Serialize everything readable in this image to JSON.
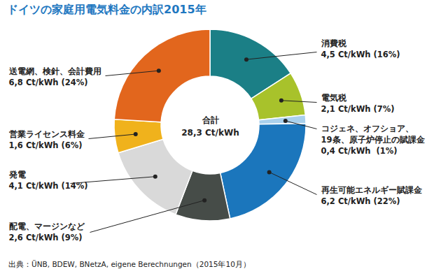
{
  "chart_data": {
    "type": "pie",
    "title": "ドイツの家庭用電気料金の内訳2015年",
    "categories": [
      "消費税",
      "電気税",
      "コジェネ、オフショア、\n19条、原子炉停止の賦課金",
      "再生可能エネルギー賦課金",
      "配電、マージンなど",
      "発電",
      "営業ライセンス料金",
      "送電網、検針、会計費用"
    ],
    "values": [
      4.5,
      2.1,
      0.4,
      6.2,
      2.6,
      4.1,
      1.6,
      6.8
    ],
    "value_labels": [
      "4,5 Ct/kWh (16%)",
      "2,1 Ct/kWh (7%)",
      "0,4 Ct/kWh  (1%)",
      "6,2 Ct/kWh (22%)",
      "2,6 Ct/kWh (9%)",
      "4,1 Ct/kWh (14%)",
      "1,6 Ct/kWh (6%)",
      "6,8 Ct/kWh (24%)"
    ],
    "colors": [
      "#1b7f86",
      "#a8c22b",
      "#a9d0ec",
      "#1b76bc",
      "#464c48",
      "#d9d9d9",
      "#f0b21c",
      "#e2661d"
    ],
    "data_labels": true,
    "total_label": "合計",
    "total_value": 28.3,
    "total_value_label": "28,3 Ct/kWh",
    "source": "出典：ÜNB, BDEW, BNetzA, eigene Berechnungen（2015年10月）"
  }
}
